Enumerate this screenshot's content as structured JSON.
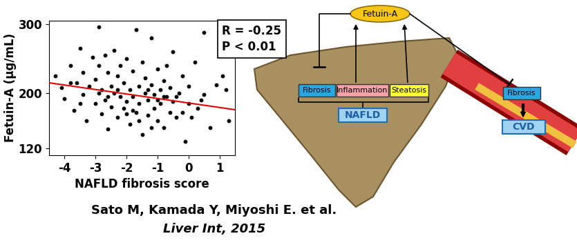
{
  "chart_data": {
    "type": "scatter",
    "x_label": "NAFLD fibrosis score",
    "y_label": "Fetuin-A (μg/mL)",
    "annotations": [
      "R = -0.25",
      "P < 0.01"
    ],
    "color": "#000000",
    "marker": "o",
    "x": [
      -4.3,
      -4.1,
      -4.0,
      -3.8,
      -3.7,
      -3.6,
      -3.5,
      -3.4,
      -3.4,
      -3.3,
      -3.2,
      -3.1,
      -3.0,
      -3.0,
      -2.9,
      -2.9,
      -2.8,
      -2.8,
      -2.7,
      -2.7,
      -2.6,
      -2.6,
      -2.5,
      -2.5,
      -2.4,
      -2.4,
      -2.3,
      -2.3,
      -2.2,
      -2.2,
      -2.1,
      -2.1,
      -2.0,
      -2.0,
      -1.9,
      -1.9,
      -1.8,
      -1.8,
      -1.7,
      -1.7,
      -1.6,
      -1.6,
      -1.5,
      -1.5,
      -1.4,
      -1.4,
      -1.3,
      -1.3,
      -1.2,
      -1.2,
      -1.1,
      -1.1,
      -1.0,
      -1.0,
      -0.9,
      -0.9,
      -0.8,
      -0.8,
      -0.7,
      -0.7,
      -0.6,
      -0.6,
      -0.5,
      -0.5,
      -0.4,
      -0.3,
      -0.2,
      -0.1,
      0.0,
      0.0,
      0.1,
      0.2,
      0.3,
      0.5,
      0.5,
      0.7,
      0.9,
      1.1,
      1.2,
      1.3,
      -3.5,
      -2.9,
      -2.3,
      -1.8,
      -1.3,
      -0.8,
      -2.6,
      -1.6,
      -1.0,
      -0.4,
      -2.0,
      -1.2,
      -3.8,
      -0.2,
      0.4
    ],
    "values": [
      225,
      208,
      192,
      240,
      175,
      215,
      265,
      198,
      230,
      160,
      210,
      252,
      185,
      220,
      296,
      240,
      170,
      205,
      255,
      190,
      230,
      148,
      210,
      180,
      262,
      200,
      225,
      165,
      240,
      195,
      178,
      215,
      250,
      188,
      205,
      155,
      232,
      195,
      292,
      172,
      210,
      185,
      245,
      140,
      200,
      222,
      168,
      190,
      280,
      212,
      178,
      198,
      235,
      160,
      205,
      185,
      218,
      150,
      195,
      240,
      172,
      208,
      188,
      260,
      165,
      200,
      225,
      130,
      185,
      210,
      165,
      245,
      178,
      288,
      198,
      150,
      212,
      225,
      205,
      160,
      185,
      200,
      205,
      175,
      205,
      195,
      195,
      160,
      190,
      195,
      170,
      150,
      215,
      172,
      190
    ],
    "trend_line": {
      "x": [
        -4.5,
        1.5
      ],
      "values": [
        215,
        176
      ],
      "color": "#e00000"
    },
    "xlim": [
      -4.5,
      1.5
    ],
    "xticks": [
      -4,
      -3,
      -2,
      -1,
      0,
      1
    ],
    "ylim": [
      110,
      305
    ],
    "yticks": [
      120,
      200,
      300
    ],
    "grid": false
  },
  "diagram": {
    "hub": "Fetuin-A",
    "liver": {
      "boxes": [
        "Fibrosis",
        "Inflammation",
        "Steatosis"
      ],
      "label": "NAFLD"
    },
    "vessel": {
      "box": "Fibrosis",
      "outcome": "CVD"
    }
  },
  "citation": {
    "authors": "Sato M, Kamada Y, Miyoshi E. et al.",
    "journal": "Liver Int, 2015"
  }
}
